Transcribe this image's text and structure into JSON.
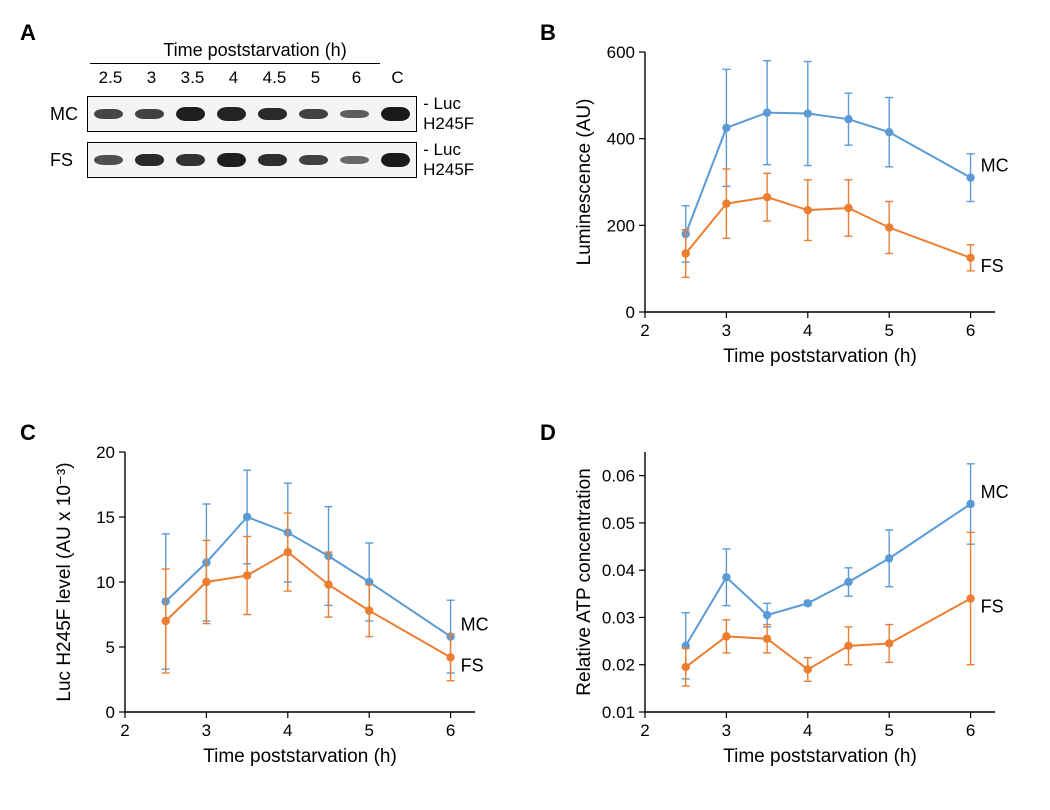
{
  "colors": {
    "mc": "#5b9bd5",
    "fs": "#ed7d31",
    "axis": "#000000",
    "bg": "#ffffff",
    "band": "#1a1a1a",
    "gel_bg": "#f5f4f2"
  },
  "fontsize": {
    "panel_label": 22,
    "axis_label": 19,
    "tick": 17,
    "series": 18
  },
  "panelA": {
    "label": "A",
    "title": "Time poststarvation (h)",
    "lanes": [
      "2.5",
      "3",
      "3.5",
      "4",
      "4.5",
      "5",
      "6",
      "C"
    ],
    "row1_label": "MC",
    "row2_label": "FS",
    "band_marker": "Luc H245F",
    "mc_intensity": [
      0.55,
      0.6,
      0.95,
      0.9,
      0.85,
      0.6,
      0.3,
      1.0
    ],
    "fs_intensity": [
      0.45,
      0.85,
      0.75,
      0.95,
      0.8,
      0.6,
      0.2,
      1.0
    ]
  },
  "panelB": {
    "label": "B",
    "xlabel": "Time poststarvation (h)",
    "ylabel": "Luminescence (AU)",
    "xlim": [
      2,
      6.3
    ],
    "ylim": [
      0,
      600
    ],
    "xticks": [
      2,
      3,
      4,
      5,
      6
    ],
    "yticks": [
      0,
      200,
      400,
      600
    ],
    "x": [
      2.5,
      3,
      3.5,
      4,
      4.5,
      5,
      6
    ],
    "mc_y": [
      180,
      425,
      460,
      458,
      445,
      415,
      310
    ],
    "mc_err": [
      65,
      135,
      120,
      120,
      60,
      80,
      55
    ],
    "fs_y": [
      135,
      250,
      265,
      235,
      240,
      195,
      125
    ],
    "fs_err": [
      55,
      80,
      55,
      70,
      65,
      60,
      30
    ],
    "mc_name": "MC",
    "fs_name": "FS"
  },
  "panelC": {
    "label": "C",
    "xlabel": "Time poststarvation (h)",
    "ylabel": "Luc H245F level (AU x 10⁻³)",
    "xlim": [
      2,
      6.3
    ],
    "ylim": [
      0,
      20
    ],
    "xticks": [
      2,
      3,
      4,
      5,
      6
    ],
    "yticks": [
      0,
      5,
      10,
      15,
      20
    ],
    "x": [
      2.5,
      3,
      3.5,
      4,
      4.5,
      5,
      6
    ],
    "mc_y": [
      8.5,
      11.5,
      15.0,
      13.8,
      12.0,
      10.0,
      5.8
    ],
    "mc_err": [
      5.2,
      4.5,
      3.6,
      3.8,
      3.8,
      3.0,
      2.8
    ],
    "fs_y": [
      7.0,
      10.0,
      10.5,
      12.3,
      9.8,
      7.8,
      4.2
    ],
    "fs_err": [
      4.0,
      3.2,
      3.0,
      3.0,
      2.5,
      2.0,
      1.8
    ],
    "mc_name": "MC",
    "fs_name": "FS"
  },
  "panelD": {
    "label": "D",
    "xlabel": "Time poststarvation (h)",
    "ylabel": "Relative ATP concentration",
    "xlim": [
      2,
      6.3
    ],
    "ylim": [
      0.01,
      0.065
    ],
    "xticks": [
      2,
      3,
      4,
      5,
      6
    ],
    "yticks": [
      0.01,
      0.02,
      0.03,
      0.04,
      0.05,
      0.06
    ],
    "x": [
      2.5,
      3,
      3.5,
      4,
      4.5,
      5,
      6
    ],
    "mc_y": [
      0.024,
      0.0385,
      0.0305,
      0.033,
      0.0375,
      0.0425,
      0.054
    ],
    "mc_err": [
      0.007,
      0.006,
      0.0025,
      0.0005,
      0.003,
      0.006,
      0.0085
    ],
    "fs_y": [
      0.0195,
      0.026,
      0.0255,
      0.019,
      0.024,
      0.0245,
      0.034
    ],
    "fs_err": [
      0.004,
      0.0035,
      0.003,
      0.0025,
      0.004,
      0.004,
      0.014
    ],
    "mc_name": "MC",
    "fs_name": "FS"
  },
  "style": {
    "marker_radius": 4.2,
    "line_width": 2,
    "err_width": 1.4,
    "cap_half": 4
  }
}
